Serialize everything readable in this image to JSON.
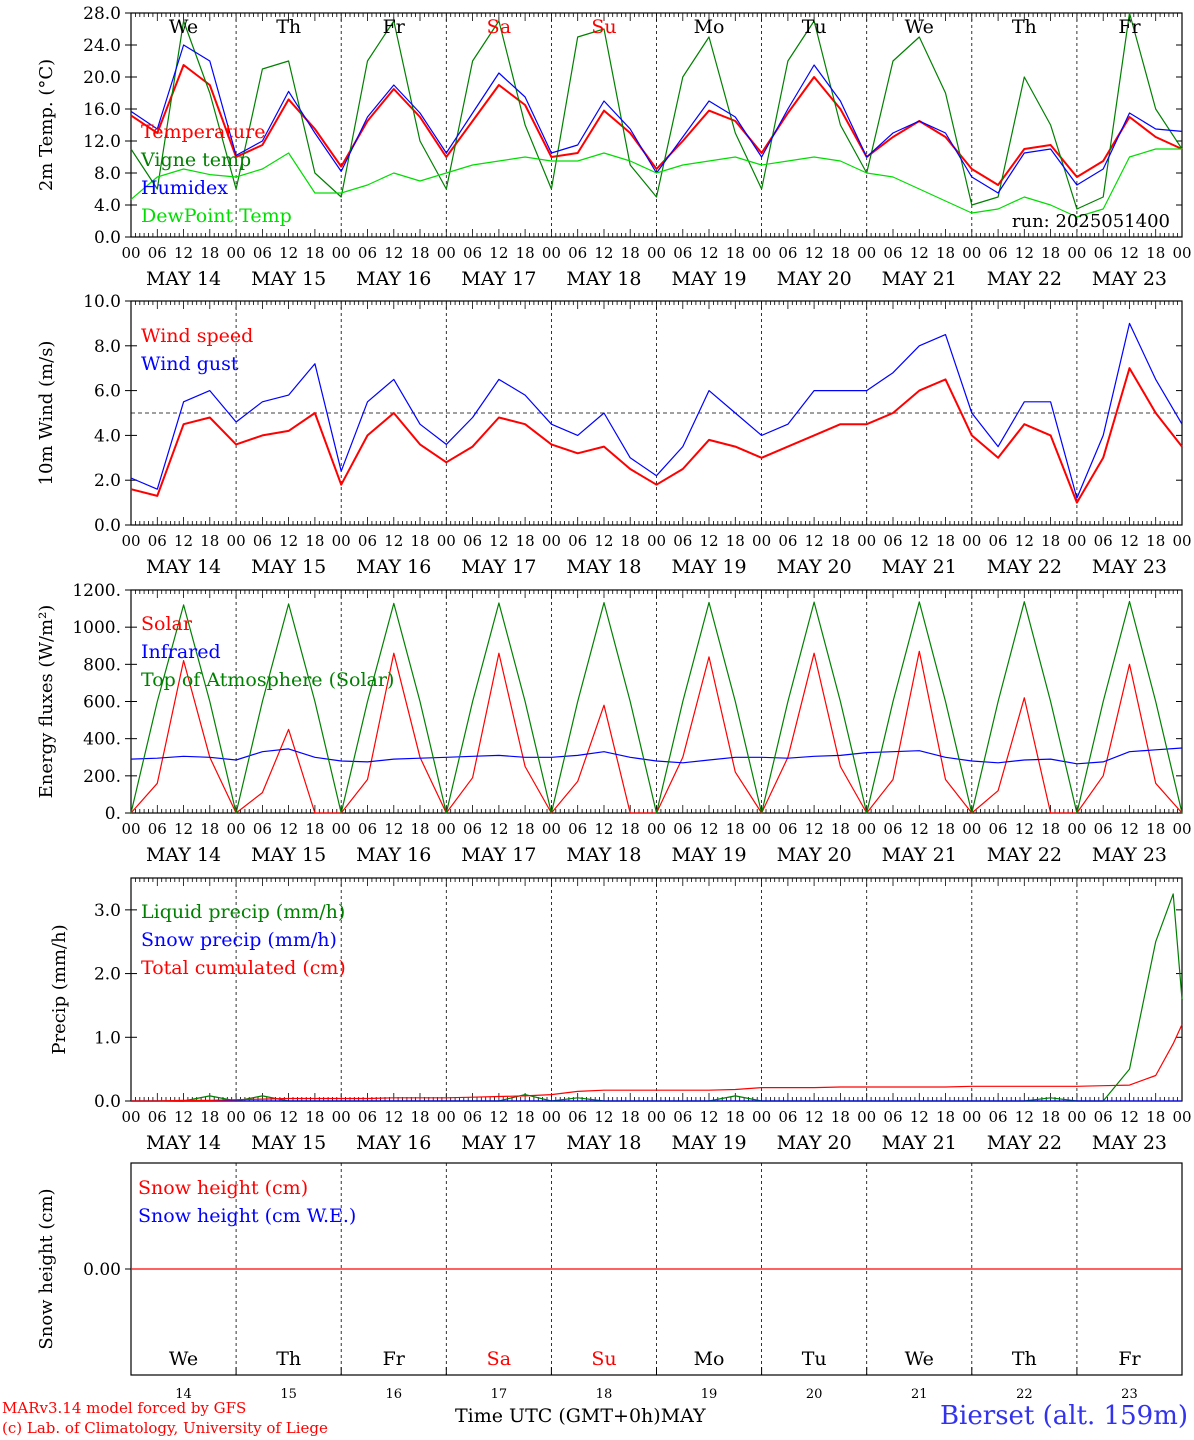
{
  "run_label": "run: 2025051400",
  "x_axis_title": "Time UTC (GMT+0h)",
  "month_label": "MAY",
  "hour_ticks": [
    "00",
    "06",
    "12",
    "18"
  ],
  "final_hour_tick": "00",
  "dates": [
    "MAY 14",
    "MAY 15",
    "MAY 16",
    "MAY 17",
    "MAY 18",
    "MAY 19",
    "MAY 20",
    "MAY 21",
    "MAY 22",
    "MAY 23"
  ],
  "weekdays": [
    {
      "label": "We",
      "weekend": false
    },
    {
      "label": "Th",
      "weekend": false
    },
    {
      "label": "Fr",
      "weekend": false
    },
    {
      "label": "Sa",
      "weekend": true
    },
    {
      "label": "Su",
      "weekend": true
    },
    {
      "label": "Mo",
      "weekend": false
    },
    {
      "label": "Tu",
      "weekend": false
    },
    {
      "label": "We",
      "weekend": false
    },
    {
      "label": "Th",
      "weekend": false
    },
    {
      "label": "Fr",
      "weekend": false
    }
  ],
  "day_numbers": [
    "14",
    "15",
    "16",
    "17",
    "18",
    "19",
    "20",
    "21",
    "22",
    "23"
  ],
  "footer": {
    "credit_line1": "MARv3.14 model forced by GFS",
    "credit_line2": "(c) Lab. of Climatology, University of Liege",
    "station": "Bierset (alt. 159m)"
  },
  "colors": {
    "red": "#ff0000",
    "blue": "#0000ff",
    "green": "#008000",
    "lightgreen": "#00dd00",
    "weekend": "#ff0000",
    "station": "#3333ee"
  },
  "chart_data": [
    {
      "type": "line",
      "id": "temp",
      "ylabel": "2m Temp. (°C)",
      "ylim": [
        0,
        28
      ],
      "yticks": [
        0,
        4,
        8,
        12,
        16,
        20,
        24,
        28
      ],
      "ytick_labels": [
        "0.0",
        "4.0",
        "8.0",
        "12.0",
        "16.0",
        "20.0",
        "24.0",
        "28.0"
      ],
      "x_hours": [
        0,
        6,
        12,
        18,
        24,
        30,
        36,
        42,
        48,
        54,
        60,
        66,
        72,
        78,
        84,
        90,
        96,
        102,
        108,
        114,
        120,
        126,
        132,
        138,
        144,
        150,
        156,
        162,
        168,
        174,
        180,
        186,
        192,
        198,
        204,
        210,
        216,
        222,
        228,
        234,
        240
      ],
      "series": [
        {
          "name": "Temperature",
          "color": "#ff0000",
          "values": [
            15.2,
            13.0,
            21.5,
            19.0,
            10.0,
            11.5,
            17.2,
            13.5,
            8.8,
            14.5,
            18.5,
            15.0,
            10.0,
            14.5,
            19.0,
            16.5,
            10.0,
            10.5,
            15.8,
            13.0,
            8.5,
            12.0,
            15.8,
            14.5,
            10.5,
            15.5,
            20.0,
            16.0,
            10.0,
            12.5,
            14.5,
            12.5,
            8.5,
            6.5,
            11.0,
            11.5,
            7.5,
            9.5,
            15.0,
            12.5,
            11.0
          ]
        },
        {
          "name": "Vigne temp",
          "color": "#008000",
          "values": [
            11.0,
            6.0,
            27.0,
            18.0,
            6.0,
            21.0,
            22.0,
            8.0,
            5.0,
            22.0,
            27.0,
            12.0,
            6.0,
            22.0,
            27.0,
            14.0,
            6.0,
            25.0,
            26.0,
            9.0,
            5.0,
            20.0,
            25.0,
            13.0,
            6.0,
            22.0,
            27.0,
            14.0,
            8.0,
            22.0,
            25.0,
            18.0,
            4.0,
            5.0,
            20.0,
            14.0,
            3.5,
            5.0,
            28.0,
            16.0,
            11.0
          ]
        },
        {
          "name": "Humidex",
          "color": "#0000ff",
          "values": [
            15.7,
            13.5,
            24.0,
            22.0,
            10.2,
            12.0,
            18.2,
            13.0,
            8.2,
            15.0,
            19.0,
            15.5,
            10.5,
            15.5,
            20.5,
            17.5,
            10.5,
            11.5,
            17.0,
            13.5,
            8.0,
            12.5,
            17.0,
            15.0,
            10.0,
            16.0,
            21.5,
            17.0,
            10.0,
            13.0,
            14.5,
            13.0,
            7.5,
            5.5,
            10.5,
            11.0,
            6.5,
            8.5,
            15.5,
            13.5,
            13.2
          ]
        },
        {
          "name": "DewPoint Temp",
          "color": "#00dd00",
          "values": [
            4.7,
            7.5,
            8.5,
            7.8,
            7.5,
            8.5,
            10.5,
            5.5,
            5.5,
            6.5,
            8.0,
            7.0,
            8.0,
            9.0,
            9.5,
            10.0,
            9.5,
            9.5,
            10.5,
            9.5,
            8.0,
            9.0,
            9.5,
            10.0,
            9.0,
            9.5,
            10.0,
            9.5,
            8.0,
            7.5,
            6.0,
            4.5,
            3.0,
            3.5,
            5.0,
            4.0,
            2.5,
            3.5,
            10.0,
            11.0,
            11.0
          ]
        }
      ],
      "legend": [
        "Temperature",
        "Vigne temp",
        "Humidex",
        "DewPoint Temp"
      ]
    },
    {
      "type": "line",
      "id": "wind",
      "ylabel": "10m Wind (m/s)",
      "ylim": [
        0,
        10
      ],
      "yticks": [
        0,
        2,
        4,
        6,
        8,
        10
      ],
      "ytick_labels": [
        "0.0",
        "2.0",
        "4.0",
        "6.0",
        "8.0",
        "10.0"
      ],
      "reference_line": 5,
      "x_hours": [
        0,
        6,
        12,
        18,
        24,
        30,
        36,
        42,
        48,
        54,
        60,
        66,
        72,
        78,
        84,
        90,
        96,
        102,
        108,
        114,
        120,
        126,
        132,
        138,
        144,
        150,
        156,
        162,
        168,
        174,
        180,
        186,
        192,
        198,
        204,
        210,
        216,
        222,
        228,
        234,
        240
      ],
      "series": [
        {
          "name": "Wind speed",
          "color": "#ff0000",
          "values": [
            1.6,
            1.3,
            4.5,
            4.8,
            3.6,
            4.0,
            4.2,
            5.0,
            1.8,
            4.0,
            5.0,
            3.6,
            2.8,
            3.5,
            4.8,
            4.5,
            3.6,
            3.2,
            3.5,
            2.5,
            1.8,
            2.5,
            3.8,
            3.5,
            3.0,
            3.5,
            4.0,
            4.5,
            4.5,
            5.0,
            6.0,
            6.5,
            4.0,
            3.0,
            4.5,
            4.0,
            1.0,
            3.0,
            7.0,
            5.0,
            3.5
          ]
        },
        {
          "name": "Wind gust",
          "color": "#0000ff",
          "values": [
            2.1,
            1.6,
            5.5,
            6.0,
            4.6,
            5.5,
            5.8,
            7.2,
            2.4,
            5.5,
            6.5,
            4.5,
            3.6,
            4.8,
            6.5,
            5.8,
            4.5,
            4.0,
            5.0,
            3.0,
            2.2,
            3.5,
            6.0,
            5.0,
            4.0,
            4.5,
            6.0,
            6.0,
            6.0,
            6.8,
            8.0,
            8.5,
            5.0,
            3.5,
            5.5,
            5.5,
            1.2,
            4.0,
            9.0,
            6.5,
            4.5
          ]
        }
      ],
      "legend": [
        "Wind speed",
        "Wind gust"
      ]
    },
    {
      "type": "line",
      "id": "energy",
      "ylabel": "Energy fluxes (W/m²)",
      "ylim": [
        0,
        1200
      ],
      "yticks": [
        0,
        200,
        400,
        600,
        800,
        1000,
        1200
      ],
      "ytick_labels": [
        "0.",
        "200.",
        "400.",
        "600.",
        "800.",
        "1000.",
        "1200."
      ],
      "x_hours": [
        0,
        6,
        12,
        18,
        24,
        30,
        36,
        42,
        48,
        54,
        60,
        66,
        72,
        78,
        84,
        90,
        96,
        102,
        108,
        114,
        120,
        126,
        132,
        138,
        144,
        150,
        156,
        162,
        168,
        174,
        180,
        186,
        192,
        198,
        204,
        210,
        216,
        222,
        228,
        234,
        240
      ],
      "series": [
        {
          "name": "Solar",
          "color": "#ff0000",
          "values": [
            0,
            160,
            820,
            300,
            0,
            110,
            450,
            0,
            0,
            180,
            860,
            300,
            0,
            190,
            860,
            250,
            0,
            170,
            580,
            0,
            0,
            300,
            840,
            220,
            0,
            300,
            860,
            250,
            0,
            180,
            870,
            180,
            0,
            120,
            620,
            0,
            0,
            200,
            800,
            160,
            0
          ]
        },
        {
          "name": "Infrared",
          "color": "#0000ff",
          "values": [
            290,
            295,
            305,
            300,
            285,
            330,
            345,
            300,
            280,
            275,
            290,
            295,
            300,
            305,
            310,
            300,
            300,
            310,
            330,
            300,
            280,
            270,
            285,
            300,
            300,
            295,
            305,
            310,
            325,
            330,
            335,
            300,
            280,
            270,
            285,
            290,
            265,
            275,
            330,
            340,
            350
          ]
        },
        {
          "name": "Top of Atmosphere (Solar)",
          "color": "#008000",
          "values": [
            0,
            600,
            1120,
            600,
            0,
            600,
            1125,
            600,
            0,
            600,
            1128,
            600,
            0,
            600,
            1130,
            600,
            0,
            600,
            1132,
            600,
            0,
            600,
            1133,
            600,
            0,
            600,
            1135,
            600,
            0,
            600,
            1136,
            600,
            0,
            600,
            1137,
            600,
            0,
            600,
            1138,
            600,
            0
          ]
        }
      ],
      "legend": [
        "Solar",
        "Infrared",
        "Top of Atmosphere (Solar)"
      ]
    },
    {
      "type": "line",
      "id": "precip",
      "ylabel": "Precip (mm/h)",
      "ylim": [
        0,
        3.5
      ],
      "yticks": [
        0,
        1,
        2,
        3
      ],
      "ytick_labels": [
        "0.0",
        "1.0",
        "2.0",
        "3.0"
      ],
      "x_hours": [
        0,
        6,
        12,
        18,
        24,
        30,
        36,
        42,
        48,
        54,
        60,
        66,
        72,
        78,
        84,
        90,
        96,
        102,
        108,
        114,
        120,
        126,
        132,
        138,
        144,
        150,
        156,
        162,
        168,
        174,
        180,
        186,
        192,
        198,
        204,
        210,
        216,
        222,
        228,
        234,
        238,
        240
      ],
      "series": [
        {
          "name": "Liquid precip (mm/h)",
          "color": "#008000",
          "values": [
            0,
            0,
            0,
            0.08,
            0,
            0.08,
            0,
            0,
            0,
            0,
            0,
            0,
            0,
            0,
            0,
            0.1,
            0,
            0.05,
            0,
            0,
            0,
            0,
            0,
            0.08,
            0,
            0,
            0,
            0,
            0,
            0,
            0,
            0,
            0,
            0,
            0,
            0.05,
            0,
            0,
            0.5,
            2.5,
            3.25,
            1.6
          ]
        },
        {
          "name": "Snow precip (mm/h)",
          "color": "#0000ff",
          "values": [
            0,
            0,
            0,
            0,
            0,
            0,
            0,
            0,
            0,
            0,
            0,
            0,
            0,
            0,
            0,
            0,
            0,
            0,
            0,
            0,
            0,
            0,
            0,
            0,
            0,
            0,
            0,
            0,
            0,
            0,
            0,
            0,
            0,
            0,
            0,
            0,
            0,
            0,
            0,
            0,
            0,
            0
          ]
        },
        {
          "name": "Total cumulated (cm)",
          "color": "#ff0000",
          "values": [
            0,
            0,
            0.01,
            0.01,
            0.02,
            0.03,
            0.04,
            0.04,
            0.04,
            0.04,
            0.05,
            0.05,
            0.05,
            0.06,
            0.07,
            0.08,
            0.1,
            0.15,
            0.17,
            0.17,
            0.17,
            0.17,
            0.17,
            0.18,
            0.21,
            0.21,
            0.21,
            0.22,
            0.22,
            0.22,
            0.22,
            0.22,
            0.23,
            0.23,
            0.23,
            0.23,
            0.23,
            0.24,
            0.25,
            0.4,
            0.9,
            1.2
          ]
        }
      ],
      "legend": [
        "Liquid precip (mm/h)",
        "Snow precip (mm/h)",
        "Total cumulated (cm)"
      ]
    },
    {
      "type": "line",
      "id": "snow",
      "ylabel": "Snow height (cm)",
      "ylim": [
        -1,
        1
      ],
      "yticks": [
        0
      ],
      "ytick_labels": [
        "0.00"
      ],
      "x_hours": [
        0,
        240
      ],
      "series": [
        {
          "name": "Snow height (cm)",
          "color": "#ff0000",
          "values": [
            0,
            0
          ]
        },
        {
          "name": "Snow height (cm W.E.)",
          "color": "#0000ff",
          "values": [
            0,
            0
          ]
        }
      ],
      "legend": [
        "Snow height (cm)",
        "Snow height (cm W.E.)"
      ]
    }
  ]
}
